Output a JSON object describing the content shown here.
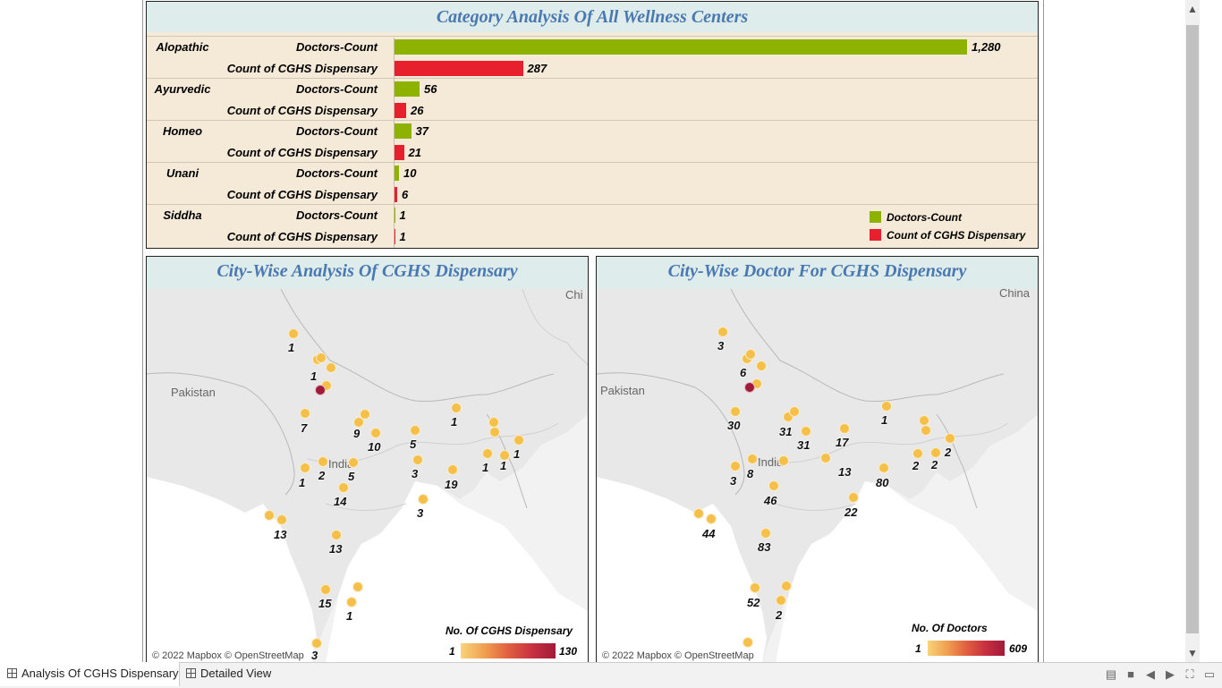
{
  "category_panel": {
    "title": "Category Analysis Of All Wellness Centers",
    "rows": [
      {
        "category": "Alopathic",
        "doctors_label": "Doctors-Count",
        "doctors": 1280,
        "doctors_text": "1,280",
        "cghs_label": "Count of CGHS Dispensary",
        "cghs": 287,
        "cghs_text": "287"
      },
      {
        "category": "Ayurvedic",
        "doctors_label": "Doctors-Count",
        "doctors": 56,
        "doctors_text": "56",
        "cghs_label": "Count of CGHS Dispensary",
        "cghs": 26,
        "cghs_text": "26"
      },
      {
        "category": "Homeo",
        "doctors_label": "Doctors-Count",
        "doctors": 37,
        "doctors_text": "37",
        "cghs_label": "Count of CGHS Dispensary",
        "cghs": 21,
        "cghs_text": "21"
      },
      {
        "category": "Unani",
        "doctors_label": "Doctors-Count",
        "doctors": 10,
        "doctors_text": "10",
        "cghs_label": "Count of CGHS Dispensary",
        "cghs": 6,
        "cghs_text": "6"
      },
      {
        "category": "Siddha",
        "doctors_label": "Doctors-Count",
        "doctors": 1,
        "doctors_text": "1",
        "cghs_label": "Count of CGHS Dispensary",
        "cghs": 1,
        "cghs_text": "1"
      }
    ],
    "legend": [
      {
        "label": "Doctors-Count",
        "color": "#8db300"
      },
      {
        "label": "Count of CGHS Dispensary",
        "color": "#e8202e"
      }
    ]
  },
  "map_left": {
    "title": "City-Wise Analysis Of CGHS Dispensary",
    "country_labels": [
      "Pakistan",
      "India",
      "Chi"
    ],
    "attribution": "© 2022 Mapbox © OpenStreetMap",
    "legend_title": "No. Of CGHS Dispensary",
    "legend_min": "1",
    "legend_max": "130",
    "labels": [
      "1",
      "1",
      "7",
      "9",
      "10",
      "5",
      "1",
      "1",
      "1",
      "1",
      "2",
      "5",
      "3",
      "19",
      "1",
      "14",
      "3",
      "13",
      "13",
      "15",
      "1",
      "3"
    ]
  },
  "map_right": {
    "title": "City-Wise Doctor For CGHS Dispensary",
    "country_labels": [
      "Pakistan",
      "India",
      "China"
    ],
    "attribution": "© 2022 Mapbox © OpenStreetMap",
    "legend_title": "No. Of Doctors",
    "legend_min": "1",
    "legend_max": "609",
    "labels": [
      "3",
      "6",
      "30",
      "31",
      "31",
      "17",
      "1",
      "2",
      "2",
      "2",
      "8",
      "13",
      "80",
      "3",
      "46",
      "22",
      "44",
      "83",
      "52",
      "2"
    ]
  },
  "tabs": [
    {
      "label": "Analysis Of CGHS Dispensary",
      "active": true
    },
    {
      "label": "Detailed View",
      "active": false
    }
  ],
  "colors": {
    "doctors": "#8db300",
    "cghs": "#e8202e",
    "dot": "#f5c04a",
    "dot_dark": "#a11a3a",
    "title": "#4a78b0"
  }
}
